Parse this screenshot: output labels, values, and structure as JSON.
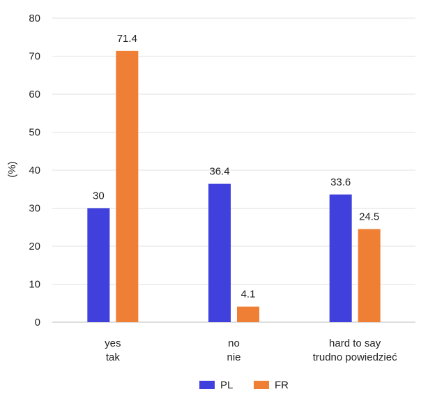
{
  "chart_data": {
    "type": "bar",
    "categories": [
      [
        "yes",
        "tak"
      ],
      [
        "no",
        "nie"
      ],
      [
        "hard to say",
        "trudno powiedzieć"
      ]
    ],
    "series": [
      {
        "name": "PL",
        "color": "#4040dd",
        "values": [
          30,
          36.4,
          33.6
        ]
      },
      {
        "name": "FR",
        "color": "#ef7f35",
        "values": [
          71.4,
          4.1,
          24.5
        ]
      }
    ],
    "data_labels": [
      [
        "30",
        "36.4",
        "33.6"
      ],
      [
        "71.4",
        "4.1",
        "24.5"
      ]
    ],
    "ylabel": "(%)",
    "ylim": [
      0,
      80
    ],
    "yticks": [
      0,
      10,
      20,
      30,
      40,
      50,
      60,
      70,
      80
    ],
    "grid": true,
    "legend": "bottom-center"
  }
}
